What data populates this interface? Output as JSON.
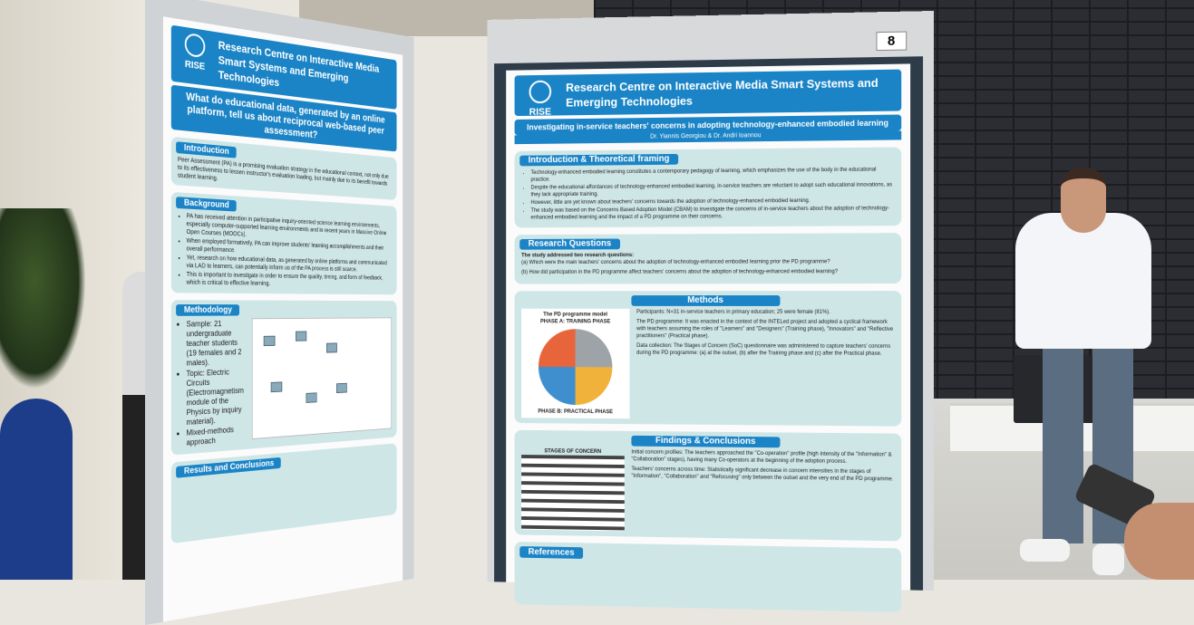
{
  "poster_left": {
    "logo": "RISE",
    "header": "Research Centre on Interactive Media Smart Systems and Emerging Technologies",
    "title": "What do educational data, generated by an online platform, tell us about reciprocal web-based peer assessment?",
    "introduction": {
      "heading": "Introduction",
      "text": "Peer Assessment (PA) is a promising evaluation strategy in the educational context, not only due to its effectiveness to lessen instructor's evaluation loading, but mainly due to its benefit towards student learning."
    },
    "background": {
      "heading": "Background",
      "bullets": [
        "PA has received attention in participative inquiry-oriented science learning environments, especially computer-supported learning environments and in recent years in Massive Online Open Courses (MOOCs).",
        "When employed formatively, PA can improve students' learning accomplishments and their overall performance.",
        "Yet, research on how educational data, as generated by online platforms and communicated via LAD to learners, can potentially inform us of the PA process is still scarce.",
        "This is important to investigate in order to ensure the quality, timing, and form of feedback, which is critical to effective learning."
      ]
    },
    "methodology": {
      "heading": "Methodology",
      "bullets": [
        "Sample: 21 undergraduate teacher students (19 females and 2 males).",
        "Topic: Electric Circuits (Electromagnetism module of the Physics by inquiry material).",
        "Mixed-methods approach"
      ]
    },
    "results": {
      "heading": "Results and Conclusions"
    }
  },
  "poster_right": {
    "number": "8",
    "logo": "RISE",
    "header": "Research Centre on Interactive Media Smart Systems and Emerging Technologies",
    "title": "Investigating in-service teachers' concerns in adopting technology-enhanced embodied learning",
    "authors": "Dr. Yiannis Georgiou & Dr. Andri Ioannou",
    "introduction": {
      "heading": "Introduction & Theoretical framing",
      "bullets": [
        "Technology-enhanced embodied learning constitutes a contemporary pedagogy of learning, which emphasizes the use of the body in the educational practice.",
        "Despite the educational affordances of technology-enhanced embodied learning, in-service teachers are reluctant to adopt such educational innovations, as they lack appropriate training.",
        "However, little are yet known about teachers' concerns towards the adoption of technology-enhanced embodied learning.",
        "The study was based on the Concerns Based Adoption Model (CBAM) to investigate the concerns of in-service teachers about the adoption of technology-enhanced embodied learning and the impact of a PD programme on their concerns."
      ]
    },
    "research_questions": {
      "heading": "Research Questions",
      "intro": "The study addressed two research questions:",
      "items": [
        "(a) Which were the main teachers' concerns about the adoption of technology-enhanced embodied learning prior the PD programme?",
        "(b) How did participation in the PD programme affect teachers' concerns about the adoption of technology-enhanced embodied learning?"
      ]
    },
    "methods": {
      "heading": "Methods",
      "model_title": "The PD programme model",
      "phase_a": "PHASE A: TRAINING PHASE",
      "phase_b": "PHASE B: PRACTICAL PHASE",
      "items": [
        "Participants: N=31 in-service teachers in primary education; 25 were female (81%).",
        "The PD programme: It was enacted in the context of the INTELed project and adopted a cyclical framework with teachers assuming the roles of \"Learners\" and \"Designers\" (Training phase), \"Innovators\" and \"Reflective practitioners\" (Practical phase).",
        "Data collection: The Stages of Concern (SoC) questionnaire was administered to capture teachers' concerns during the PD programme: (a) at the outset, (b) after the Training phase and (c) after the Practical phase."
      ]
    },
    "findings": {
      "heading": "Findings & Conclusions",
      "figure_title": "STAGES OF CONCERN",
      "items": [
        "Initial concern profiles: The teachers approached the \"Co-operation\" profile (high intensity of the \"Information\" & \"Collaboration\" stages), having many Co-operators at the beginning of the adoption process.",
        "Teachers' concerns across time: Statistically significant decrease in concern intensities in the stages of \"Information\", \"Collaboration\" and \"Refocusing\" only between the outset and the very end of the PD programme."
      ]
    },
    "references": {
      "heading": "References"
    }
  }
}
